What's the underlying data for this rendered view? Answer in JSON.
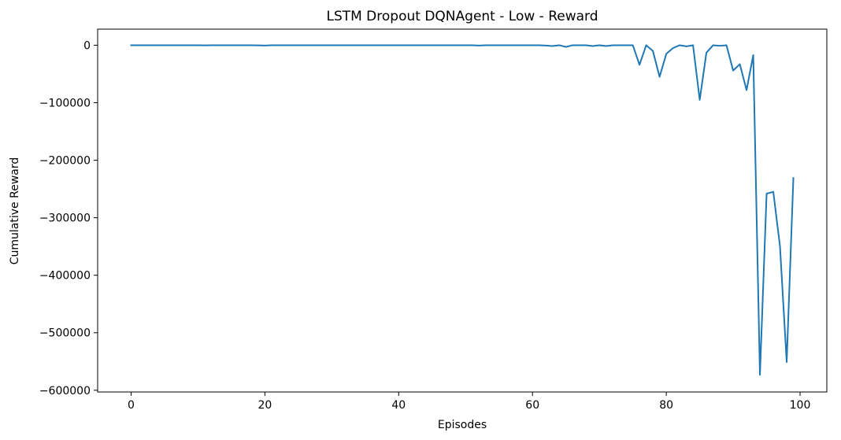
{
  "chart_data": {
    "type": "line",
    "title": "LSTM Dropout DQNAgent - Low - Reward",
    "xlabel": "Episodes",
    "ylabel": "Cumulative Reward",
    "xlim": [
      -5.0,
      104.0
    ],
    "ylim": [
      -603000,
      28000
    ],
    "x_ticks": [
      0,
      20,
      40,
      60,
      80,
      100
    ],
    "x_tick_labels": [
      "0",
      "20",
      "40",
      "60",
      "80",
      "100"
    ],
    "y_ticks": [
      0,
      -100000,
      -200000,
      -300000,
      -400000,
      -500000,
      -600000
    ],
    "y_tick_labels": [
      "0",
      "−100000",
      "−200000",
      "−300000",
      "−400000",
      "−500000",
      "−600000"
    ],
    "grid": false,
    "series": [
      {
        "color": "#1f77b4",
        "x": [
          0,
          1,
          2,
          3,
          4,
          5,
          6,
          7,
          8,
          9,
          10,
          11,
          12,
          13,
          14,
          15,
          16,
          17,
          18,
          19,
          20,
          21,
          22,
          23,
          24,
          25,
          26,
          27,
          28,
          29,
          30,
          31,
          32,
          33,
          34,
          35,
          36,
          37,
          38,
          39,
          40,
          41,
          42,
          43,
          44,
          45,
          46,
          47,
          48,
          49,
          50,
          51,
          52,
          53,
          54,
          55,
          56,
          57,
          58,
          59,
          60,
          61,
          62,
          63,
          64,
          65,
          66,
          67,
          68,
          69,
          70,
          71,
          72,
          73,
          74,
          75,
          76,
          77,
          78,
          79,
          80,
          81,
          82,
          83,
          84,
          85,
          86,
          87,
          88,
          89,
          90,
          91,
          92,
          93,
          94,
          95,
          96,
          97,
          98,
          99
        ],
        "y": [
          0,
          0,
          0,
          0,
          0,
          0,
          0,
          0,
          0,
          0,
          0,
          -300,
          0,
          0,
          0,
          0,
          0,
          0,
          0,
          -300,
          -500,
          0,
          0,
          0,
          0,
          0,
          0,
          0,
          0,
          0,
          0,
          0,
          0,
          0,
          0,
          0,
          0,
          0,
          0,
          0,
          0,
          0,
          0,
          0,
          0,
          0,
          0,
          0,
          0,
          0,
          0,
          0,
          -500,
          0,
          0,
          0,
          0,
          0,
          0,
          0,
          0,
          0,
          -500,
          -1500,
          0,
          -3000,
          0,
          0,
          0,
          -1500,
          0,
          -1500,
          0,
          0,
          0,
          0,
          -34000,
          0,
          -10000,
          -55000,
          -15000,
          -5000,
          0,
          -2000,
          0,
          -95000,
          -13000,
          0,
          -1000,
          0,
          -44000,
          -33000,
          -78000,
          -17000,
          -573000,
          -258000,
          -255000,
          -350000,
          -551000,
          -231000
        ]
      }
    ]
  }
}
